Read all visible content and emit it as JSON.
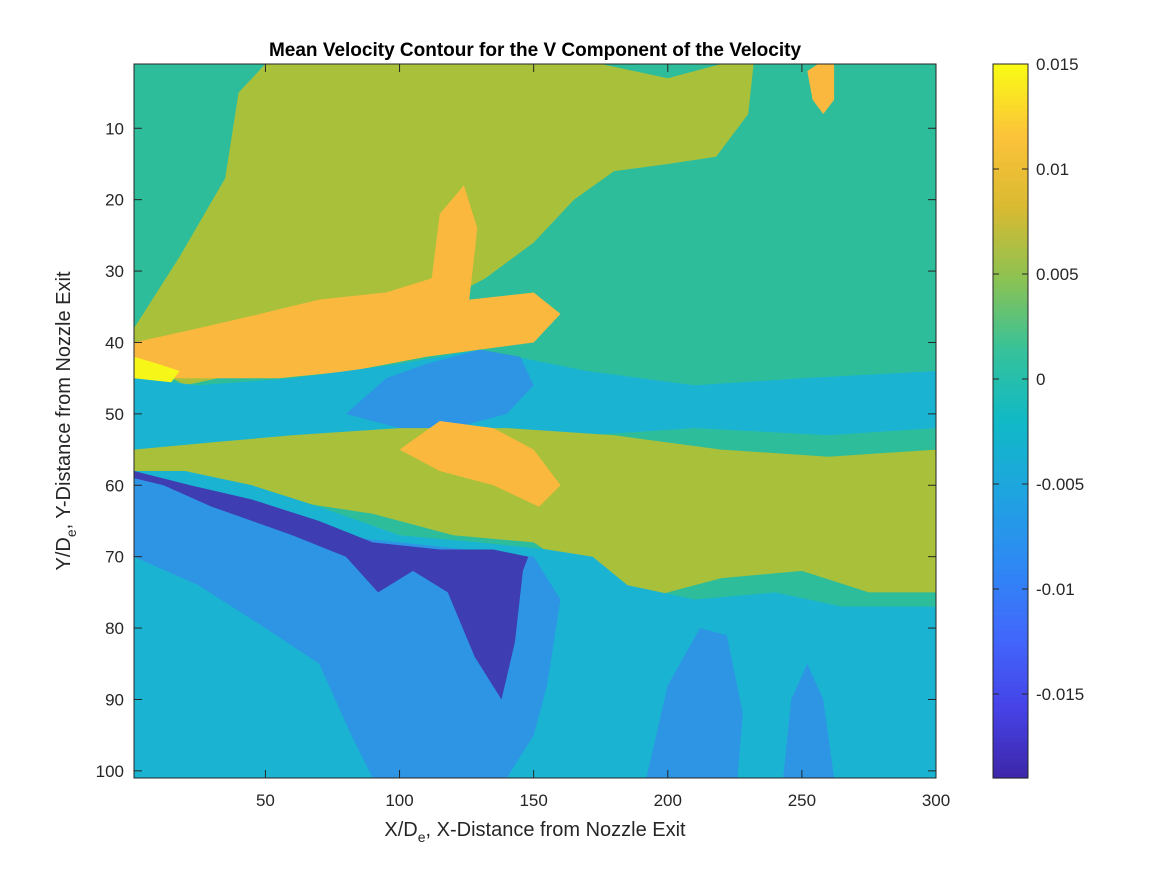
{
  "chart_data": {
    "type": "heatmap",
    "title": "Mean Velocity Contour for the V Component of the Velocity",
    "xlabel": {
      "main": "X/D",
      "sub": "e",
      "rest": ", X-Distance from Nozzle Exit"
    },
    "ylabel": {
      "main": "Y/D",
      "sub": "e",
      "rest": ",  Y-Distance from Nozzle Exit"
    },
    "xlim": [
      1,
      300
    ],
    "ylim": [
      1,
      101
    ],
    "y_reversed": true,
    "x_ticks": [
      50,
      100,
      150,
      200,
      250,
      300
    ],
    "x_tick_labels": [
      "50",
      "100",
      "150",
      "200",
      "250",
      "300"
    ],
    "y_ticks": [
      10,
      20,
      30,
      40,
      50,
      60,
      70,
      80,
      90,
      100
    ],
    "y_tick_labels": [
      "10",
      "20",
      "30",
      "40",
      "50",
      "60",
      "70",
      "80",
      "90",
      "100"
    ],
    "colorbar": {
      "limits": [
        -0.019,
        0.015
      ],
      "ticks": [
        -0.015,
        -0.01,
        -0.005,
        0,
        0.005,
        0.01,
        0.015
      ],
      "tick_labels": [
        "-0.015",
        "-0.01",
        "-0.005",
        "0",
        "0.005",
        "0.01",
        "0.015"
      ],
      "colormap": "parula",
      "levels": [
        {
          "min": -0.019,
          "max": -0.015,
          "color": "#3e3db1"
        },
        {
          "min": -0.015,
          "max": -0.011,
          "color": "#3d6cf4"
        },
        {
          "min": -0.011,
          "max": -0.0075,
          "color": "#2d95e4"
        },
        {
          "min": -0.0075,
          "max": -0.004,
          "color": "#1ab4d2"
        },
        {
          "min": -0.004,
          "max": -0.0005,
          "color": "#25c0a2"
        },
        {
          "min": -0.0005,
          "max": 0.0035,
          "color": "#2ebd9a"
        },
        {
          "min": 0.0035,
          "max": 0.0075,
          "color": "#a9c03b"
        },
        {
          "min": 0.0075,
          "max": 0.012,
          "color": "#fbb83e"
        },
        {
          "min": 0.012,
          "max": 0.015,
          "color": "#f7f619"
        }
      ]
    },
    "regions": [
      {
        "name": "background",
        "value": 0.0015
      },
      {
        "name": "upper-positive-band",
        "value": 0.0055
      },
      {
        "name": "upper-shear-layer",
        "value": 0.009
      },
      {
        "name": "nozzle-lip-peak",
        "value": 0.014
      },
      {
        "name": "center-negative-band",
        "value": -0.006
      },
      {
        "name": "center-strong-negative",
        "value": -0.009
      },
      {
        "name": "lower-positive-band",
        "value": 0.0055
      },
      {
        "name": "lower-shear-layer",
        "value": 0.009
      },
      {
        "name": "lower-negative-field",
        "value": -0.0065
      },
      {
        "name": "lower-strong-negative",
        "value": -0.0105
      },
      {
        "name": "lower-core-minimum",
        "value": -0.016
      }
    ]
  }
}
